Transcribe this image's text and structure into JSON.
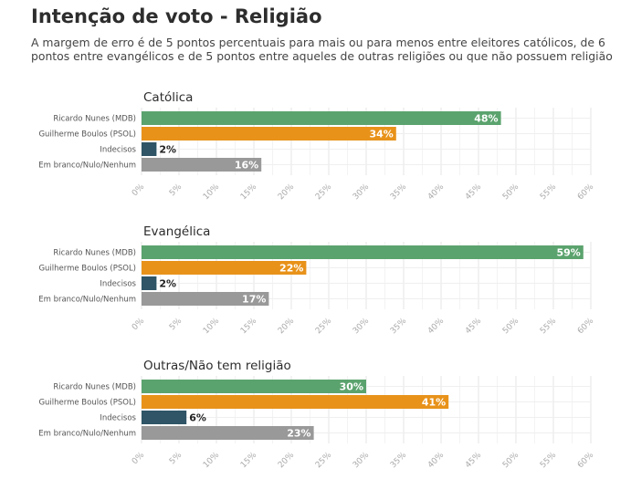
{
  "header": {
    "title": "Intenção de voto - Religião",
    "subtitle": "A margem de erro é de 5 pontos percentuais para mais ou para menos entre eleitores católicos, de 6 pontos entre evangélicos e de 5 pontos entre aqueles de outras religiões ou que não possuem religião"
  },
  "chart_data": [
    {
      "type": "bar",
      "orientation": "horizontal",
      "title": "Católica",
      "categories": [
        "Ricardo Nunes (MDB)",
        "Guilherme Boulos (PSOL)",
        "Indecisos",
        "Em branco/Nulo/Nenhum"
      ],
      "values": [
        48,
        34,
        2,
        16
      ],
      "data_labels": [
        "48%",
        "34%",
        "2%",
        "16%"
      ],
      "colors": [
        "#5ba36e",
        "#e8921a",
        "#2f5566",
        "#999999"
      ],
      "xlim": [
        0,
        60
      ],
      "xticks": [
        "0%",
        "5%",
        "10%",
        "15%",
        "20%",
        "25%",
        "30%",
        "35%",
        "40%",
        "45%",
        "50%",
        "55%",
        "60%"
      ],
      "grid": true
    },
    {
      "type": "bar",
      "orientation": "horizontal",
      "title": "Evangélica",
      "categories": [
        "Ricardo Nunes (MDB)",
        "Guilherme Boulos (PSOL)",
        "Indecisos",
        "Em branco/Nulo/Nenhum"
      ],
      "values": [
        59,
        22,
        2,
        17
      ],
      "data_labels": [
        "59%",
        "22%",
        "2%",
        "17%"
      ],
      "colors": [
        "#5ba36e",
        "#e8921a",
        "#2f5566",
        "#999999"
      ],
      "xlim": [
        0,
        60
      ],
      "xticks": [
        "0%",
        "5%",
        "10%",
        "15%",
        "20%",
        "25%",
        "30%",
        "35%",
        "40%",
        "45%",
        "50%",
        "55%",
        "60%"
      ],
      "grid": true
    },
    {
      "type": "bar",
      "orientation": "horizontal",
      "title": "Outras/Não tem religião",
      "categories": [
        "Ricardo Nunes (MDB)",
        "Guilherme Boulos (PSOL)",
        "Indecisos",
        "Em branco/Nulo/Nenhum"
      ],
      "values": [
        30,
        41,
        6,
        23
      ],
      "data_labels": [
        "30%",
        "41%",
        "6%",
        "23%"
      ],
      "colors": [
        "#5ba36e",
        "#e8921a",
        "#2f5566",
        "#999999"
      ],
      "xlim": [
        0,
        60
      ],
      "xticks": [
        "0%",
        "5%",
        "10%",
        "15%",
        "20%",
        "25%",
        "30%",
        "35%",
        "40%",
        "45%",
        "50%",
        "55%",
        "60%"
      ],
      "grid": true
    }
  ]
}
